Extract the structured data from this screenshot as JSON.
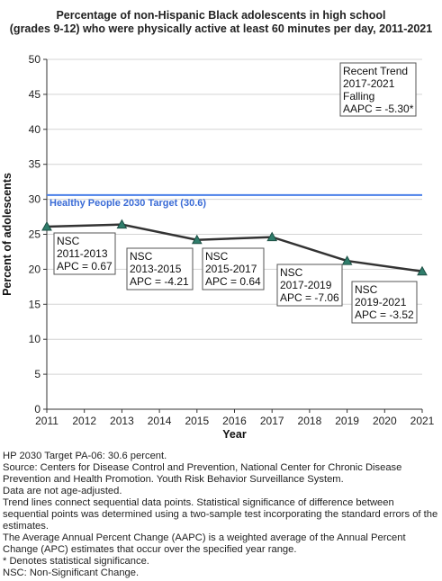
{
  "chart_data": {
    "type": "line",
    "title_lines": [
      "Percentage of non-Hispanic Black adolescents in high school",
      "(grades 9-12) who were physically active at least 60 minutes per day, 2011-2021"
    ],
    "xlabel": "Year",
    "ylabel": "Percent of adolescents",
    "xlim": [
      2011,
      2021
    ],
    "ylim": [
      0,
      50
    ],
    "x_ticks": [
      "2011",
      "2012",
      "2013",
      "2014",
      "2015",
      "2016",
      "2017",
      "2018",
      "2019",
      "2020",
      "2021"
    ],
    "y_ticks": [
      "0",
      "5",
      "10",
      "15",
      "20",
      "25",
      "30",
      "35",
      "40",
      "45",
      "50"
    ],
    "grid": true,
    "series": [
      {
        "x": [
          2011,
          2013,
          2015,
          2017,
          2019,
          2021
        ],
        "values": [
          26.1,
          26.4,
          24.2,
          24.6,
          21.2,
          19.7
        ]
      }
    ],
    "target": {
      "value": 30.6,
      "label": "Healthy People 2030 Target (30.6)",
      "color": "#4a7fe8"
    },
    "line_color": "#333333",
    "marker_color": "#2f7d6b",
    "annotations": [
      {
        "lines": [
          "NSC",
          "2011-2013",
          "APC =  0.67"
        ]
      },
      {
        "lines": [
          "NSC",
          "2013-2015",
          "APC = -4.21"
        ]
      },
      {
        "lines": [
          "NSC",
          "2015-2017",
          "APC =  0.64"
        ]
      },
      {
        "lines": [
          "NSC",
          "2017-2019",
          "APC = -7.06"
        ]
      },
      {
        "lines": [
          "NSC",
          "2019-2021",
          "APC = -3.52"
        ]
      }
    ],
    "trend_box": {
      "lines": [
        "Recent Trend",
        "2017-2021",
        "Falling",
        "AAPC = -5.30*"
      ]
    }
  },
  "footnotes": [
    "HP 2030 Target PA-06: 30.6 percent.",
    "Source: Centers for Disease Control and Prevention, National Center for Chronic Disease Prevention and Health Promotion. Youth Risk Behavior Surveillance System.",
    "Data are not age-adjusted.",
    "Trend lines connect sequential data points. Statistical significance of difference between sequential points was determined using a two-sample test incorporating the standard errors of the estimates.",
    "The Average Annual Percent Change (AAPC) is a weighted average of the Annual Percent Change (APC) estimates that occur over the specified year range.",
    "* Denotes statistical significance.",
    "NSC: Non-Significant Change."
  ]
}
